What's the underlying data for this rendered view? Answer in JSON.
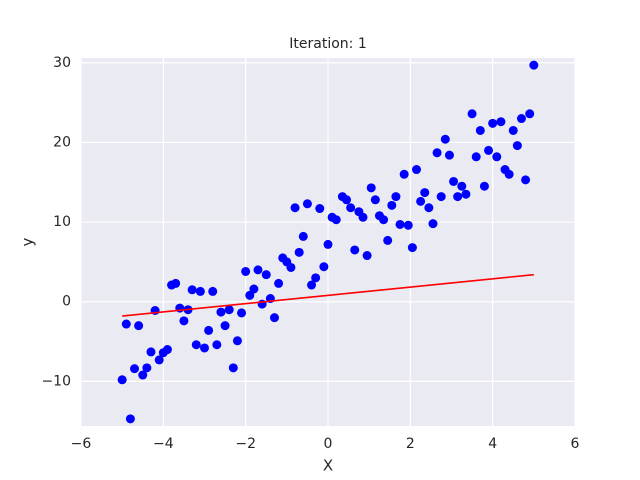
{
  "chart_data": {
    "type": "scatter",
    "title": "Iteration: 1",
    "xlabel": "X",
    "ylabel": "y",
    "xlim": [
      -6,
      6
    ],
    "ylim": [
      -15.6,
      30.6
    ],
    "xticks": [
      {
        "value": -6,
        "label": "−6"
      },
      {
        "value": -4,
        "label": "−4"
      },
      {
        "value": -2,
        "label": "−2"
      },
      0,
      2,
      4,
      6
    ],
    "yticks": [
      {
        "value": -10,
        "label": "−10"
      },
      0,
      10,
      20,
      30
    ],
    "grid": true,
    "points": {
      "color": "#0000ff",
      "x": [
        -5.0,
        -4.9,
        -4.8,
        -4.7,
        -4.6,
        -4.5,
        -4.4,
        -4.3,
        -4.2,
        -4.1,
        -4.0,
        -3.9,
        -3.8,
        -3.7,
        -3.6,
        -3.5,
        -3.4,
        -3.3,
        -3.2,
        -3.1,
        -3.0,
        -2.9,
        -2.8,
        -2.7,
        -2.6,
        -2.5,
        -2.4,
        -2.3,
        -2.2,
        -2.1,
        -2.0,
        -1.9,
        -1.8,
        -1.7,
        -1.6,
        -1.5,
        -1.4,
        -1.3,
        -1.2,
        -1.1,
        -1.0,
        -0.9,
        -0.8,
        -0.7,
        -0.6,
        -0.5,
        -0.4,
        -0.3,
        -0.2,
        -0.1,
        0.0,
        0.1,
        0.2,
        0.35,
        0.45,
        0.55,
        0.65,
        0.75,
        0.85,
        0.95,
        1.05,
        1.15,
        1.25,
        1.35,
        1.45,
        1.55,
        1.65,
        1.75,
        1.85,
        1.95,
        2.05,
        2.15,
        2.25,
        2.35,
        2.45,
        2.55,
        2.65,
        2.75,
        2.85,
        2.95,
        3.05,
        3.15,
        3.25,
        3.35,
        3.5,
        3.6,
        3.7,
        3.8,
        3.9,
        4.0,
        4.1,
        4.2,
        4.3,
        4.4,
        4.5,
        4.6,
        4.7,
        4.8,
        4.9,
        5.0
      ],
      "y": [
        -9.8,
        -2.8,
        -14.7,
        -8.4,
        -3.0,
        -9.2,
        -8.3,
        -6.3,
        -1.1,
        -7.3,
        -6.4,
        -6.0,
        2.1,
        2.3,
        -0.8,
        -2.4,
        -1.0,
        1.5,
        -5.4,
        1.3,
        -5.8,
        -3.6,
        1.3,
        -5.4,
        -1.3,
        -3.0,
        -1.0,
        -8.3,
        -4.9,
        -1.4,
        3.8,
        0.8,
        1.6,
        4.0,
        -0.3,
        3.4,
        0.4,
        -2.0,
        2.3,
        5.5,
        5.0,
        4.3,
        11.8,
        6.2,
        8.2,
        12.3,
        2.1,
        3.0,
        11.7,
        4.4,
        7.2,
        10.6,
        10.3,
        13.2,
        12.8,
        11.8,
        6.5,
        11.3,
        10.6,
        5.8,
        14.3,
        12.8,
        10.8,
        10.3,
        7.7,
        12.1,
        13.2,
        9.7,
        16.0,
        9.6,
        6.8,
        16.6,
        12.6,
        13.7,
        11.8,
        9.8,
        18.7,
        13.2,
        20.4,
        18.4,
        15.1,
        13.2,
        14.5,
        13.5,
        23.6,
        18.2,
        21.5,
        14.5,
        19.0,
        22.4,
        18.2,
        22.6,
        16.6,
        16.0,
        21.5,
        19.6,
        23.0,
        15.3,
        23.6,
        29.7
      ]
    },
    "line": {
      "color": "#ff0000",
      "x": [
        -5,
        5
      ],
      "y": [
        -1.8,
        3.4
      ]
    }
  }
}
